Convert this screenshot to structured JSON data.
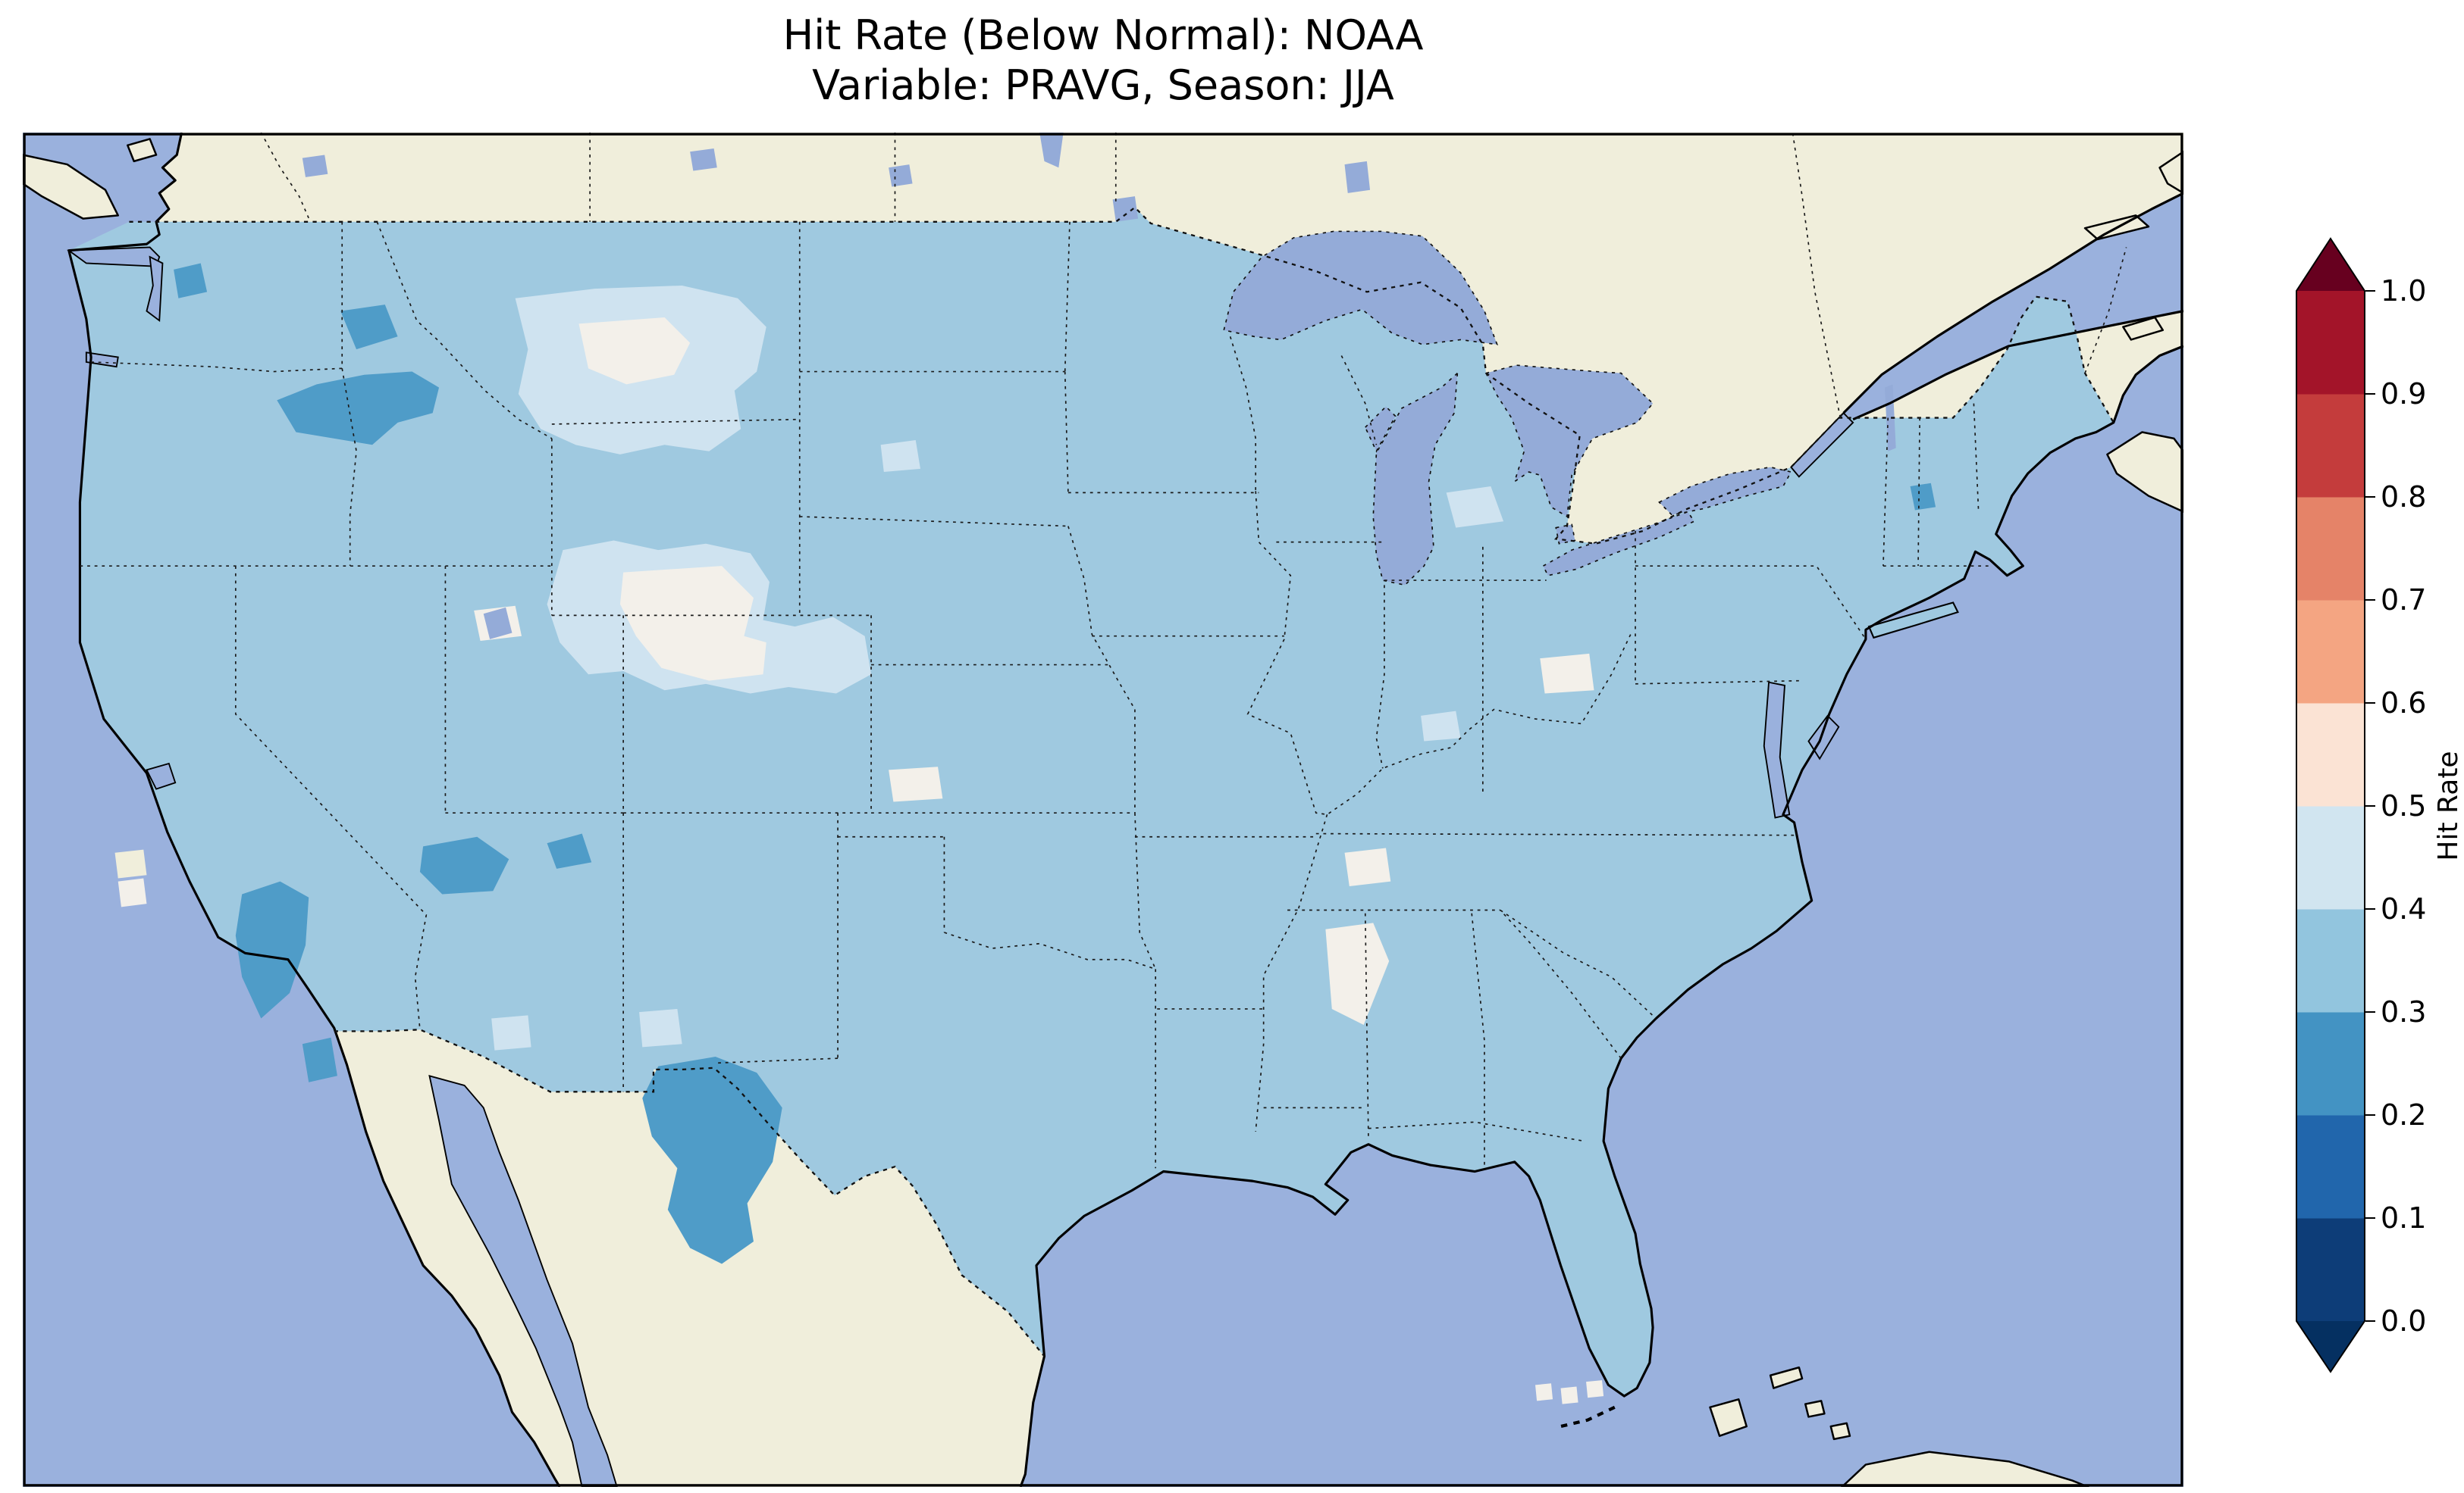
{
  "figure": {
    "title_line1": "Hit Rate (Below Normal): NOAA",
    "title_line2": "Variable: PRAVG, Season: JJA"
  },
  "palette": {
    "ocean": "#9ab1dd",
    "land": "#f0eedb",
    "lake": "#94abd8",
    "us_base": "#9fc9e0",
    "bin_04_05": "#cfe3f0",
    "bin_05_06": "#f3f0ea",
    "bin_02_03": "#4f9cc8"
  },
  "chart_data": {
    "type": "heatmap",
    "title": "Hit Rate (Below Normal): NOAA",
    "subtitle": "Variable: PRAVG, Season: JJA",
    "region": "Contiguous United States with surrounding Canada, Mexico, Pacific, Atlantic, Gulf of Mexico",
    "grid": "gridded hit-rate field shown only over CONUS; non-US land masked beige; water periwinkle blue",
    "colorbar": {
      "label": "Hit Rate",
      "ticks": [
        0.0,
        0.1,
        0.2,
        0.3,
        0.4,
        0.5,
        0.6,
        0.7,
        0.8,
        0.9,
        1.0
      ],
      "extend": "both",
      "bin_colors_low_to_high": [
        "#0d3d78",
        "#2166ac",
        "#4393c3",
        "#92c5de",
        "#d1e5f0",
        "#fbe3d4",
        "#f4a582",
        "#e58368",
        "#c43c3c",
        "#a31429"
      ],
      "under_color": "#053061",
      "over_color": "#67001f",
      "orientation": "vertical",
      "position": "right"
    },
    "values_summary": {
      "dominant_range": [
        0.3,
        0.4
      ],
      "regions": [
        {
          "region": "Most of the contiguous United States",
          "hit_rate": "0.3-0.4"
        },
        {
          "region": "North-central Montana and southern Wyoming into Nebraska panhandle",
          "hit_rate": "0.4-0.5"
        },
        {
          "region": "Core patches in central Wyoming and west-central Montana",
          "hit_rate": "0.5-0.6"
        },
        {
          "region": "Small pale patches: Utah salt flats, southwest Kansas, central Ohio, middle Tennessee, northern Mississippi, south Florida tip, central California coast",
          "hit_rate": "0.4-0.6"
        },
        {
          "region": "Idaho/Montana border (Bitterroots) and northeast Washington",
          "hit_rate": "0.2-0.3"
        },
        {
          "region": "Eastern California (Sierra/Owens Valley)",
          "hit_rate": "0.2-0.3"
        },
        {
          "region": "Southern Nevada / northwest Arizona and northwest New Mexico",
          "hit_rate": "0.2-0.3"
        },
        {
          "region": "Eastern New Mexico into west Texas (largest dark patch)",
          "hit_rate": "0.2-0.3"
        },
        {
          "region": "Olympic Peninsula coast, southeast California border, northern New England speck",
          "hit_rate": "0.2-0.3"
        }
      ],
      "no_red_bins_present": "no values above ~0.6 appear on the map; warm colors exist only in the colorbar legend"
    }
  }
}
